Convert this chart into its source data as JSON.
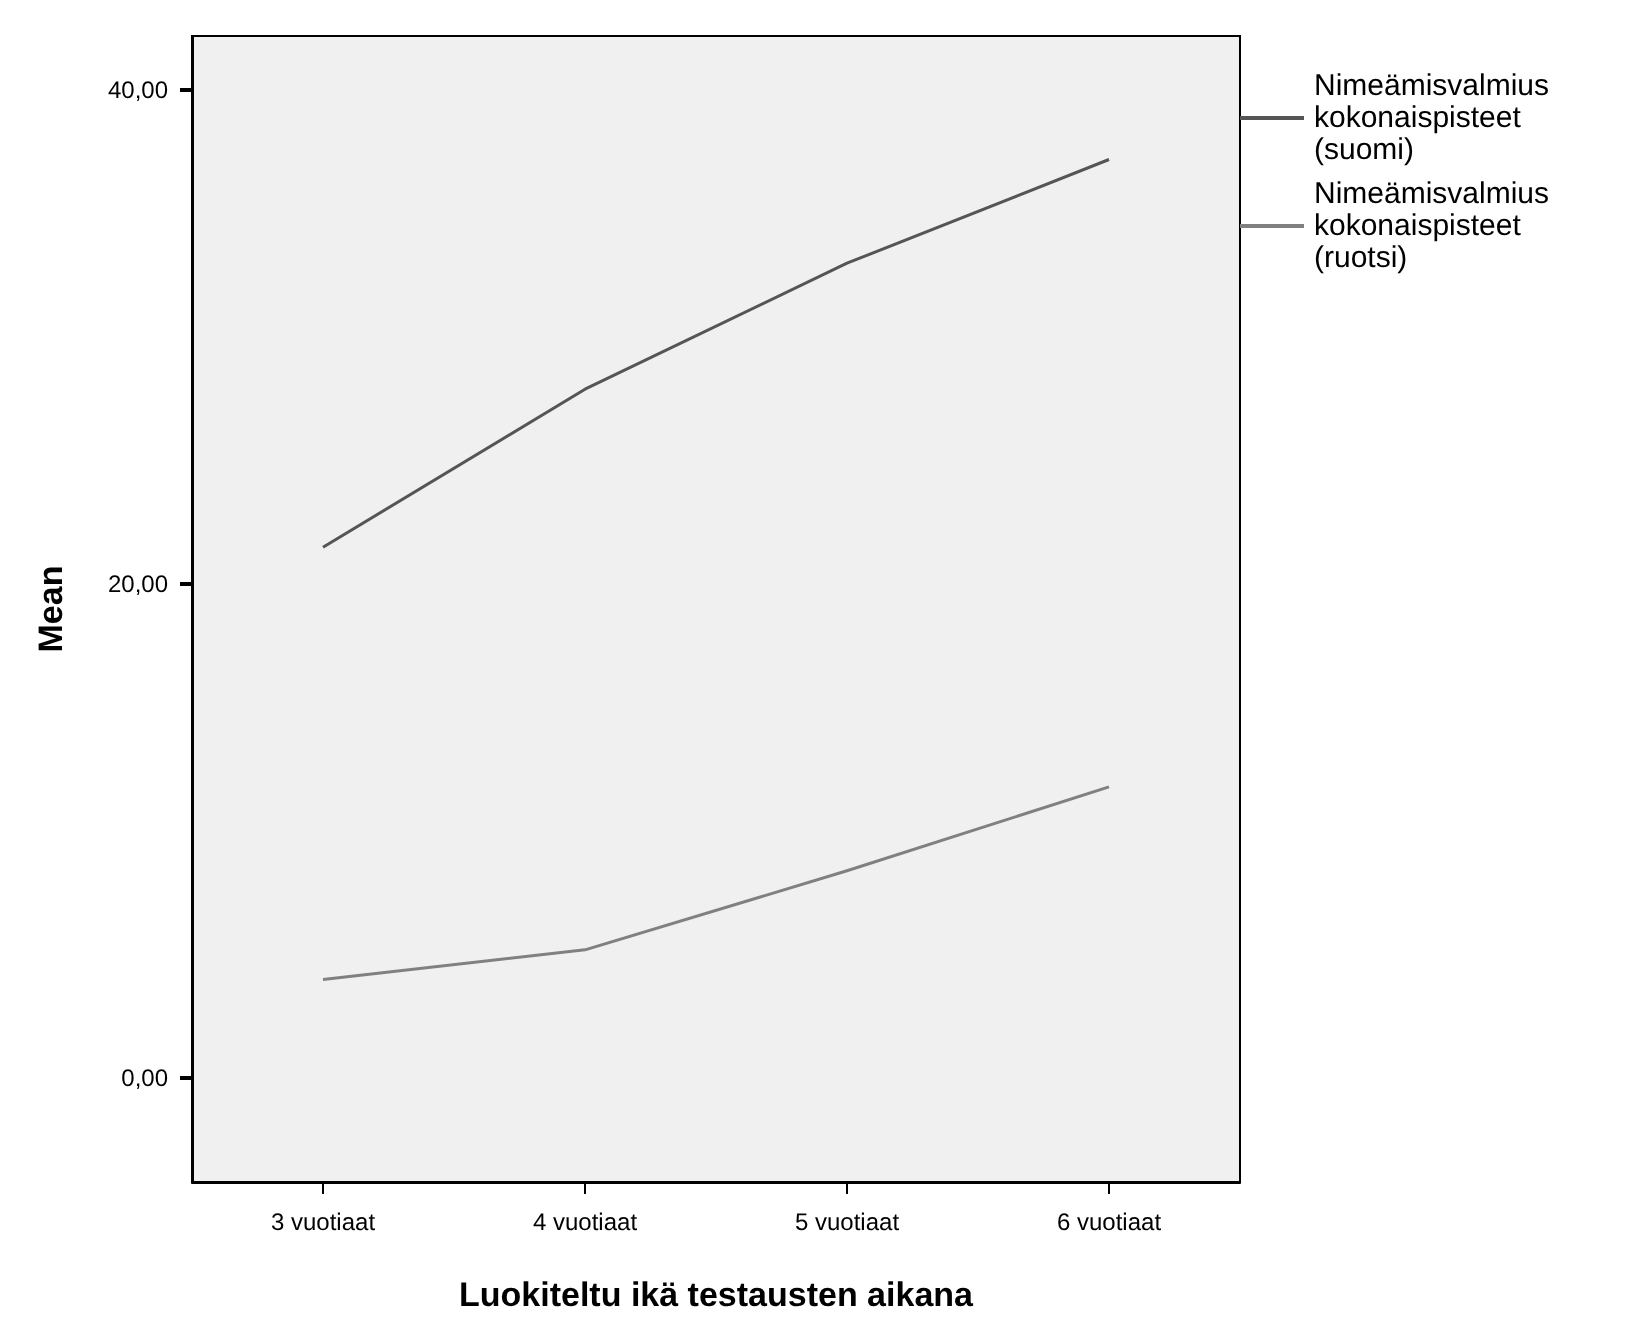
{
  "chart_data": {
    "type": "line",
    "xlabel": "Luokiteltu ikä testausten aikana",
    "ylabel": "Mean",
    "categories": [
      "3 vuotiaat",
      "4 vuotiaat",
      "5 vuotiaat",
      "6 vuotiaat"
    ],
    "series": [
      {
        "name": "Nimeämisvalmius kokonaispisteet (suomi)",
        "color": "#555555",
        "values": [
          21.5,
          27.9,
          33.0,
          37.2
        ]
      },
      {
        "name": "Nimeämisvalmius kokonaispisteet (ruotsi)",
        "color": "#808080",
        "values": [
          4.0,
          5.2,
          8.4,
          11.8
        ]
      }
    ],
    "ylim": [
      -4.2,
      42.2
    ],
    "yticks": [
      {
        "value": 0,
        "label": "0,00"
      },
      {
        "value": 20,
        "label": "20,00"
      },
      {
        "value": 40,
        "label": "40,00"
      }
    ],
    "grid": false,
    "legend": "right",
    "marker": "none",
    "line_style": "solid"
  }
}
